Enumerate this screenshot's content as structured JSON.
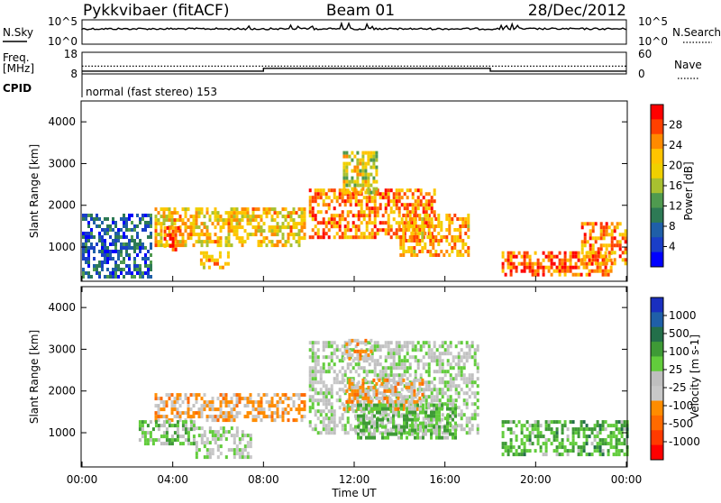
{
  "header": {
    "station": "Pykkvibaer (fitACF)",
    "beam": "Beam 01",
    "date": "28/Dec/2012"
  },
  "noise_panel": {
    "left_label": "N.Sky",
    "right_label": "N.Search",
    "left_ticks": [
      "10^5",
      "10^0"
    ],
    "right_ticks": [
      "10^5",
      "10^0"
    ]
  },
  "freq_panel": {
    "left_label_line1": "Freq.",
    "left_label_line2": "[MHz]",
    "right_label": "Nave",
    "left_ticks": [
      "18",
      "8"
    ],
    "right_ticks": [
      "60",
      "0"
    ],
    "freq_steps": [
      {
        "t": 0.0,
        "f": 9.3
      },
      {
        "t": 8.0,
        "f": 9.3
      },
      {
        "t": 8.0,
        "f": 10.6
      },
      {
        "t": 18.0,
        "f": 10.6
      },
      {
        "t": 18.0,
        "f": 9.3
      },
      {
        "t": 24.0,
        "f": 9.3
      }
    ],
    "nave_level": 11.6
  },
  "cpid": {
    "label": "CPID",
    "mode_text": "normal (fast stereo) 153"
  },
  "x_axis": {
    "label": "Time UT",
    "ticks": [
      "00:00",
      "04:00",
      "08:00",
      "12:00",
      "16:00",
      "20:00",
      "00:00"
    ],
    "tick_hours": [
      0,
      4,
      8,
      12,
      16,
      20,
      24
    ]
  },
  "power_panel": {
    "ylabel": "Slant Range [km]",
    "yticks": [
      "4000",
      "3000",
      "2000",
      "1000"
    ],
    "ytick_values": [
      4000,
      3000,
      2000,
      1000
    ],
    "colorbar_title": "Power [dB]",
    "colorbar_ticks": [
      "28",
      "24",
      "20",
      "16",
      "12",
      "8",
      "4"
    ],
    "colorbar_colors": [
      "#ff0000",
      "#ff4000",
      "#ff8a00",
      "#ffc400",
      "#f0d000",
      "#a8c030",
      "#4f9a4f",
      "#2d7a55",
      "#1f5fa8",
      "#1a3ec8",
      "#0000ff"
    ]
  },
  "velocity_panel": {
    "ylabel": "Slant Range [km]",
    "yticks": [
      "4000",
      "3000",
      "2000",
      "1000"
    ],
    "ytick_values": [
      4000,
      3000,
      2000,
      1000
    ],
    "colorbar_title": "Velocity [m s-1]",
    "colorbar_ticks": [
      "1000",
      "500",
      "100",
      "25",
      "-25",
      "-100",
      "-500",
      "-1000"
    ],
    "colorbar_colors": [
      "#1a2fbf",
      "#1f5fa8",
      "#236f4a",
      "#3e9a36",
      "#62cc3c",
      "#bfbfbf",
      "#c8c8c8",
      "#ff8c00",
      "#ff6a00",
      "#ff3a00",
      "#ff0000"
    ]
  },
  "chart_data": [
    {
      "type": "line",
      "title": "Pykkvibaer (fitACF)",
      "x": [
        0,
        4,
        8,
        12,
        16,
        20,
        24
      ],
      "xlabel": "Time UT",
      "series": [
        {
          "name": "N.Sky",
          "values": [
            1.0,
            1.0,
            1.0,
            1.0,
            1.0,
            1.0,
            1.0
          ]
        }
      ]
    },
    {
      "type": "heatmap",
      "xlabel": "Time UT",
      "ylabel": "Slant Range [km]",
      "xlim": [
        0,
        24
      ],
      "ylim": [
        180,
        4500
      ],
      "colorbar_label": "Power [dB]",
      "colorbar_range": [
        0,
        30
      ],
      "regions": [
        {
          "t0": 3.2,
          "t1": 9.8,
          "r0": 1050,
          "r1": 1950,
          "value": 20
        },
        {
          "t0": 3.6,
          "t1": 4.3,
          "r0": 900,
          "r1": 1500,
          "value": 26
        },
        {
          "t0": 5.2,
          "t1": 6.4,
          "r0": 500,
          "r1": 900,
          "value": 22
        },
        {
          "t0": 10.0,
          "t1": 15.5,
          "r0": 1200,
          "r1": 2400,
          "value": 24
        },
        {
          "t0": 11.5,
          "t1": 13.0,
          "r0": 2300,
          "r1": 3300,
          "value": 18
        },
        {
          "t0": 14.0,
          "t1": 17.0,
          "r0": 800,
          "r1": 1800,
          "value": 22
        },
        {
          "t0": 18.5,
          "t1": 23.5,
          "r0": 350,
          "r1": 900,
          "value": 26
        },
        {
          "t0": 22.0,
          "t1": 24.0,
          "r0": 600,
          "r1": 1600,
          "value": 24
        },
        {
          "t0": 0.0,
          "t1": 3.0,
          "r0": 250,
          "r1": 1800,
          "value": 6
        }
      ]
    },
    {
      "type": "heatmap",
      "xlabel": "Time UT",
      "ylabel": "Slant Range [km]",
      "xlim": [
        0,
        24
      ],
      "ylim": [
        180,
        4500
      ],
      "colorbar_label": "Velocity [m s-1]",
      "colorbar_range": [
        -1000,
        1000
      ],
      "regions": [
        {
          "t0": 3.2,
          "t1": 9.8,
          "r0": 1300,
          "r1": 1950,
          "value": -300
        },
        {
          "t0": 2.5,
          "t1": 5.0,
          "r0": 700,
          "r1": 1300,
          "value": 150
        },
        {
          "t0": 5.0,
          "t1": 7.5,
          "r0": 450,
          "r1": 1150,
          "value": 0
        },
        {
          "t0": 10.0,
          "t1": 17.5,
          "r0": 1000,
          "r1": 3200,
          "value": 0
        },
        {
          "t0": 11.5,
          "t1": 15.0,
          "r0": 1600,
          "r1": 2300,
          "value": -300
        },
        {
          "t0": 11.5,
          "t1": 12.8,
          "r0": 2800,
          "r1": 3250,
          "value": -300
        },
        {
          "t0": 12.0,
          "t1": 16.5,
          "r0": 900,
          "r1": 1700,
          "value": 250
        },
        {
          "t0": 18.5,
          "t1": 24.0,
          "r0": 450,
          "r1": 1300,
          "value": 300
        }
      ]
    }
  ]
}
